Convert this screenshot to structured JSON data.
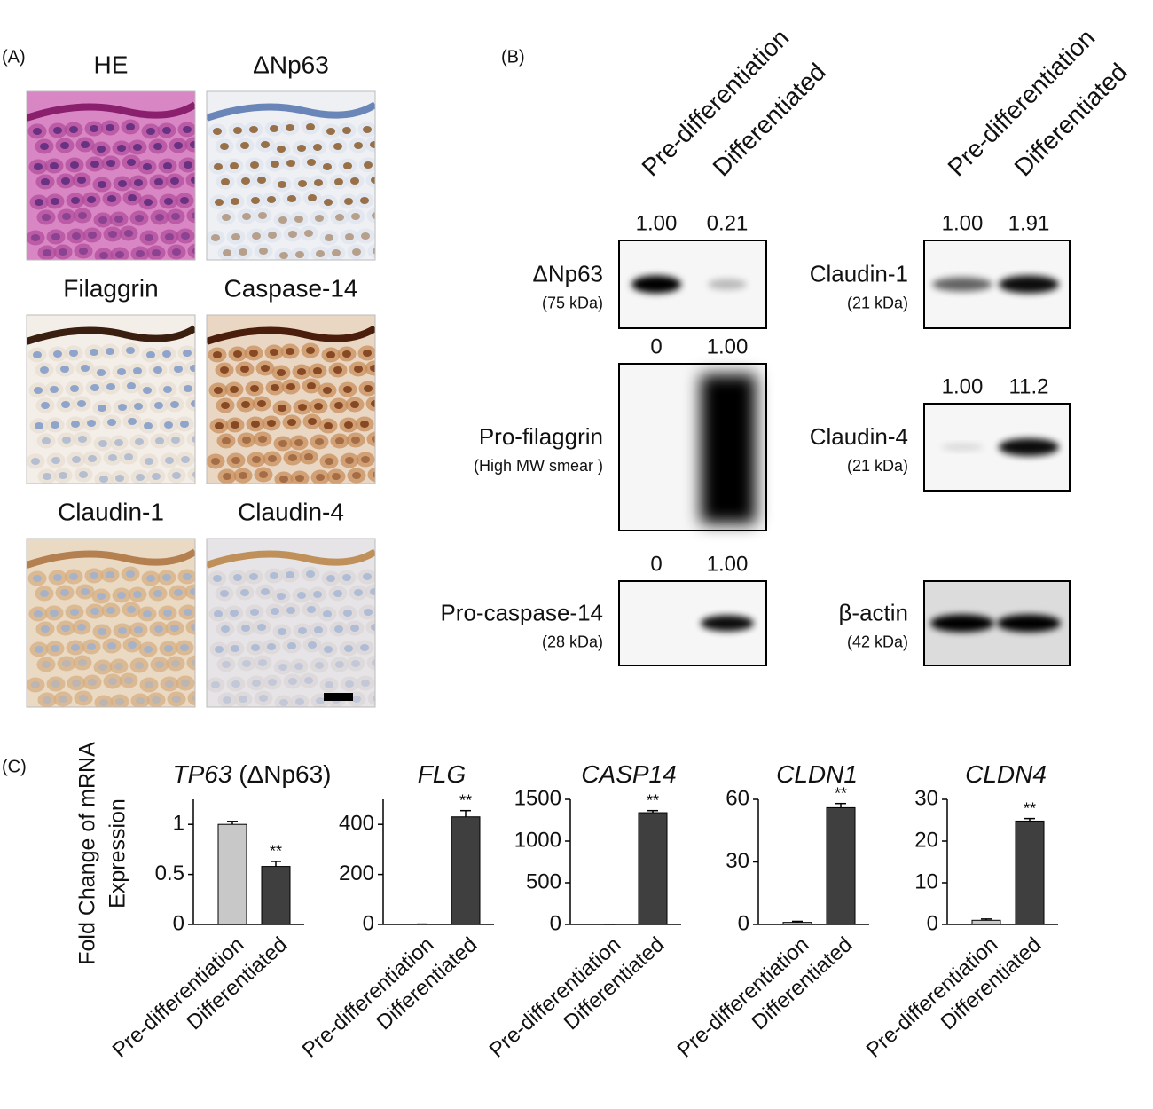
{
  "panel_a": {
    "label": "(A)",
    "images": [
      "HE",
      "ΔNp63",
      "Filaggrin",
      "Caspase-14",
      "Claudin-1",
      "Claudin-4"
    ]
  },
  "panel_b": {
    "label": "(B)",
    "lanes": [
      "Pre-differentiation",
      "Differentiated"
    ],
    "blots": [
      {
        "name": "ΔNp63",
        "size": "(75 kDa)",
        "quant": [
          "1.00",
          "0.21"
        ]
      },
      {
        "name": "Pro-filaggrin",
        "size": "(High MW smear )",
        "quant": [
          "0",
          "1.00"
        ]
      },
      {
        "name": "Pro-caspase-14",
        "size": "(28 kDa)",
        "quant": [
          "0",
          "1.00"
        ]
      },
      {
        "name": "Claudin-1",
        "size": "(21 kDa)",
        "quant": [
          "1.00",
          "1.91"
        ]
      },
      {
        "name": "Claudin-4",
        "size": "(21 kDa)",
        "quant": [
          "1.00",
          "11.2"
        ]
      },
      {
        "name": "β-actin",
        "size": "(42 kDa)"
      }
    ]
  },
  "panel_c": {
    "label": "(C)",
    "y_label": [
      "Fold Change of mRNA",
      "Expression"
    ]
  },
  "chart_data": [
    {
      "type": "bar",
      "title": "TP63",
      "subtitle": "(ΔNp63)",
      "categories": [
        "Pre-differentiation",
        "Differentiated"
      ],
      "values": [
        1,
        0.58
      ],
      "errors": [
        0.03,
        0.05
      ],
      "colors": [
        "#c8c8c8",
        "#3f3f3f"
      ],
      "annotation": "**",
      "ylim": [
        0,
        1.25
      ],
      "yticks": [
        0,
        0.5,
        1
      ]
    },
    {
      "type": "bar",
      "title": "FLG",
      "categories": [
        "Pre-differentiation",
        "Differentiated"
      ],
      "values": [
        1,
        430
      ],
      "errors": [
        0.5,
        25
      ],
      "colors": [
        "#c8c8c8",
        "#3f3f3f"
      ],
      "annotation": "**",
      "ylim": [
        0,
        500
      ],
      "yticks": [
        0,
        200,
        400
      ]
    },
    {
      "type": "bar",
      "title": "CASP14",
      "categories": [
        "Pre-differentiation",
        "Differentiated"
      ],
      "values": [
        1,
        1340
      ],
      "errors": [
        0.5,
        25
      ],
      "colors": [
        "#c8c8c8",
        "#3f3f3f"
      ],
      "annotation": "**",
      "ylim": [
        0,
        1500
      ],
      "yticks": [
        0,
        500,
        1000,
        1500
      ]
    },
    {
      "type": "bar",
      "title": "CLDN1",
      "categories": [
        "Pre-differentiation",
        "Differentiated"
      ],
      "values": [
        1,
        56
      ],
      "errors": [
        0.5,
        2
      ],
      "colors": [
        "#c8c8c8",
        "#3f3f3f"
      ],
      "annotation": "**",
      "ylim": [
        0,
        60
      ],
      "yticks": [
        0,
        30,
        60
      ]
    },
    {
      "type": "bar",
      "title": "CLDN4",
      "categories": [
        "Pre-differentiation",
        "Differentiated"
      ],
      "values": [
        1,
        24.8
      ],
      "errors": [
        0.3,
        0.6
      ],
      "colors": [
        "#c8c8c8",
        "#3f3f3f"
      ],
      "annotation": "**",
      "ylim": [
        0,
        30
      ],
      "yticks": [
        0,
        10,
        20,
        30
      ]
    }
  ]
}
